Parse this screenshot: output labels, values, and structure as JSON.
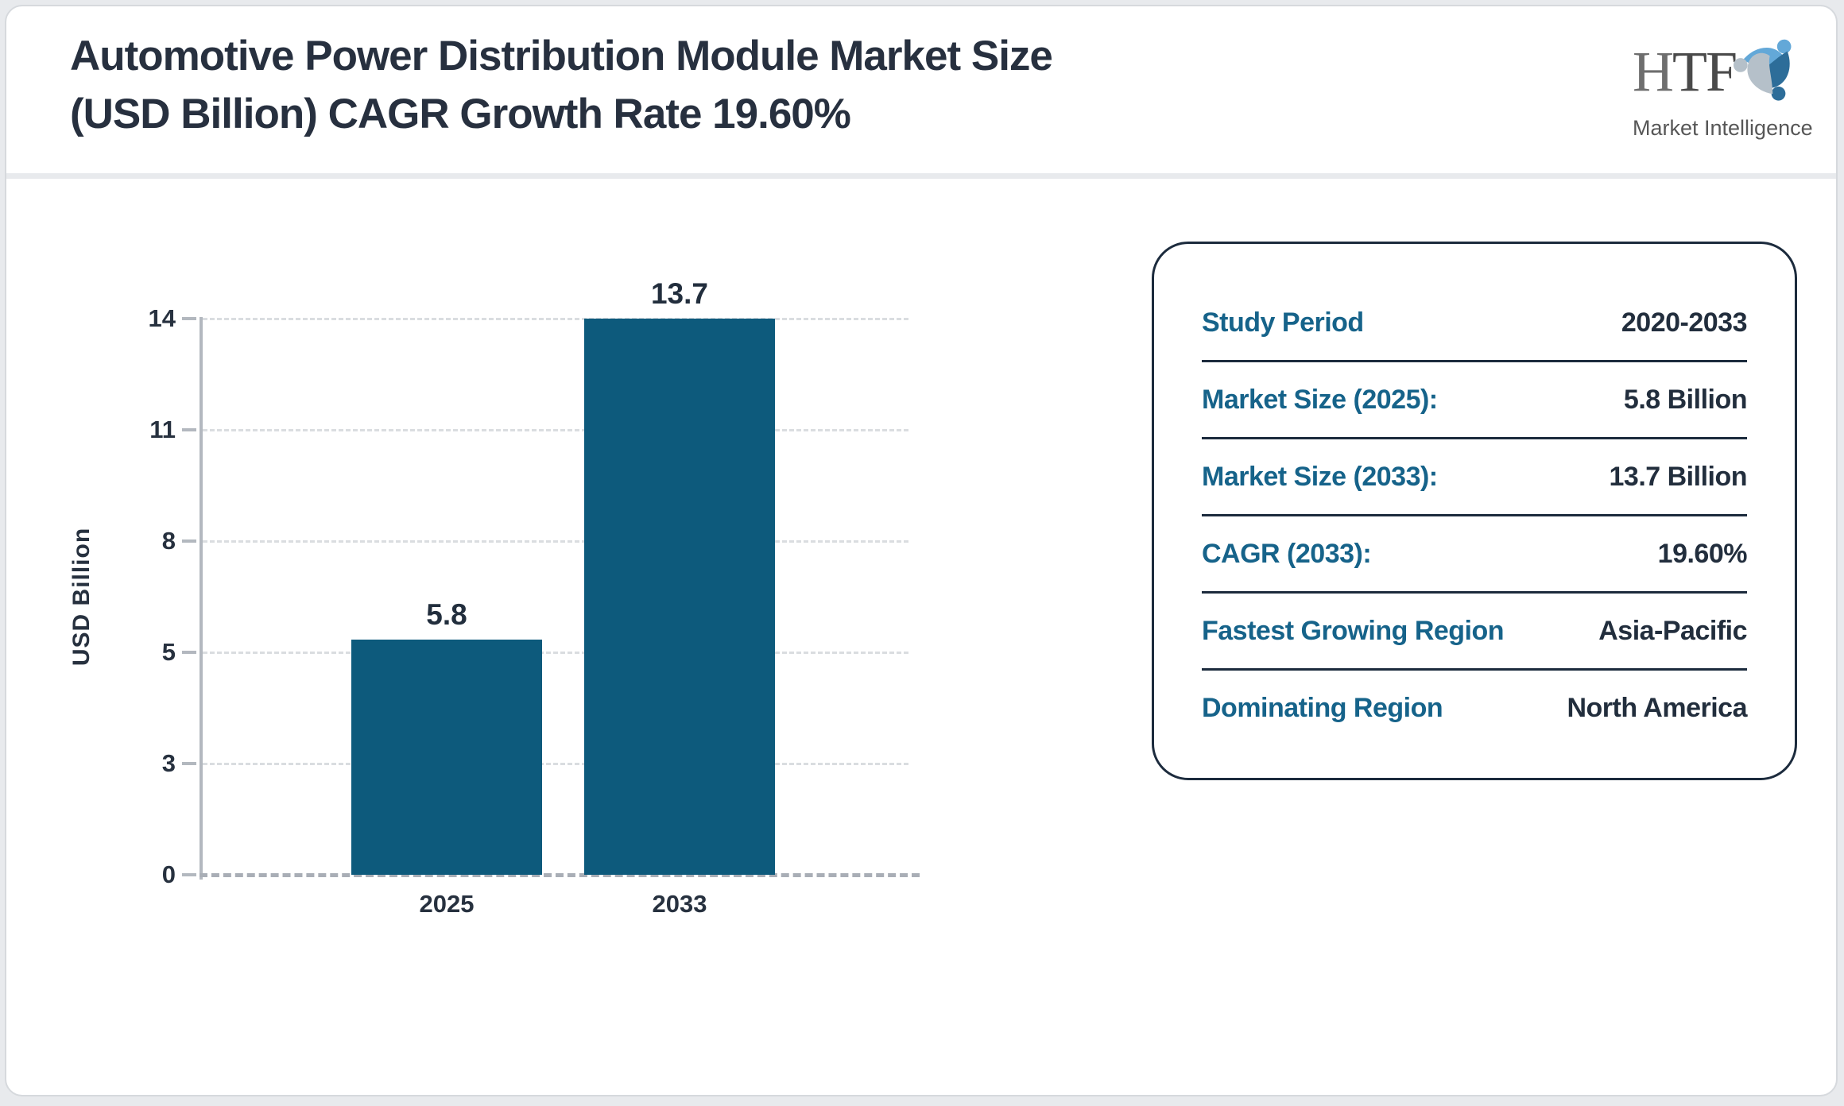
{
  "header": {
    "title": "Automotive Power Distribution Module Market Size (USD Billion) CAGR Growth Rate 19.60%",
    "logo": {
      "text_h": "H",
      "text_tf": "TF",
      "subtitle": "Market Intelligence"
    }
  },
  "chart_data": {
    "type": "bar",
    "title": "",
    "xlabel": "",
    "ylabel": "USD Billion",
    "categories": [
      "2025",
      "2033"
    ],
    "values": [
      5.8,
      13.7
    ],
    "bar_value_labels": [
      "5.8",
      "13.7"
    ],
    "ytick_labels": [
      "0",
      "3",
      "5",
      "8",
      "11",
      "14"
    ],
    "ylim": [
      0,
      13.7
    ],
    "grid": "horizontal-dashed",
    "legend_position": "none",
    "bar_color": "#0d5a7c",
    "gridline_color": "#dadde0",
    "axis_color": "#b3b8bf"
  },
  "summary_panel": {
    "rows": [
      {
        "label": "Study Period",
        "value": "2020-2033"
      },
      {
        "label": "Market Size (2025):",
        "value": "5.8 Billion"
      },
      {
        "label": "Market Size (2033):",
        "value": "13.7 Billion"
      },
      {
        "label": "CAGR (2033):",
        "value": "19.60%"
      },
      {
        "label": "Fastest Growing Region",
        "value": "Asia-Pacific"
      },
      {
        "label": "Dominating Region",
        "value": "North America"
      }
    ],
    "label_color": "#16638a",
    "value_color": "#222e3d",
    "border_color": "#1c2b3d"
  }
}
